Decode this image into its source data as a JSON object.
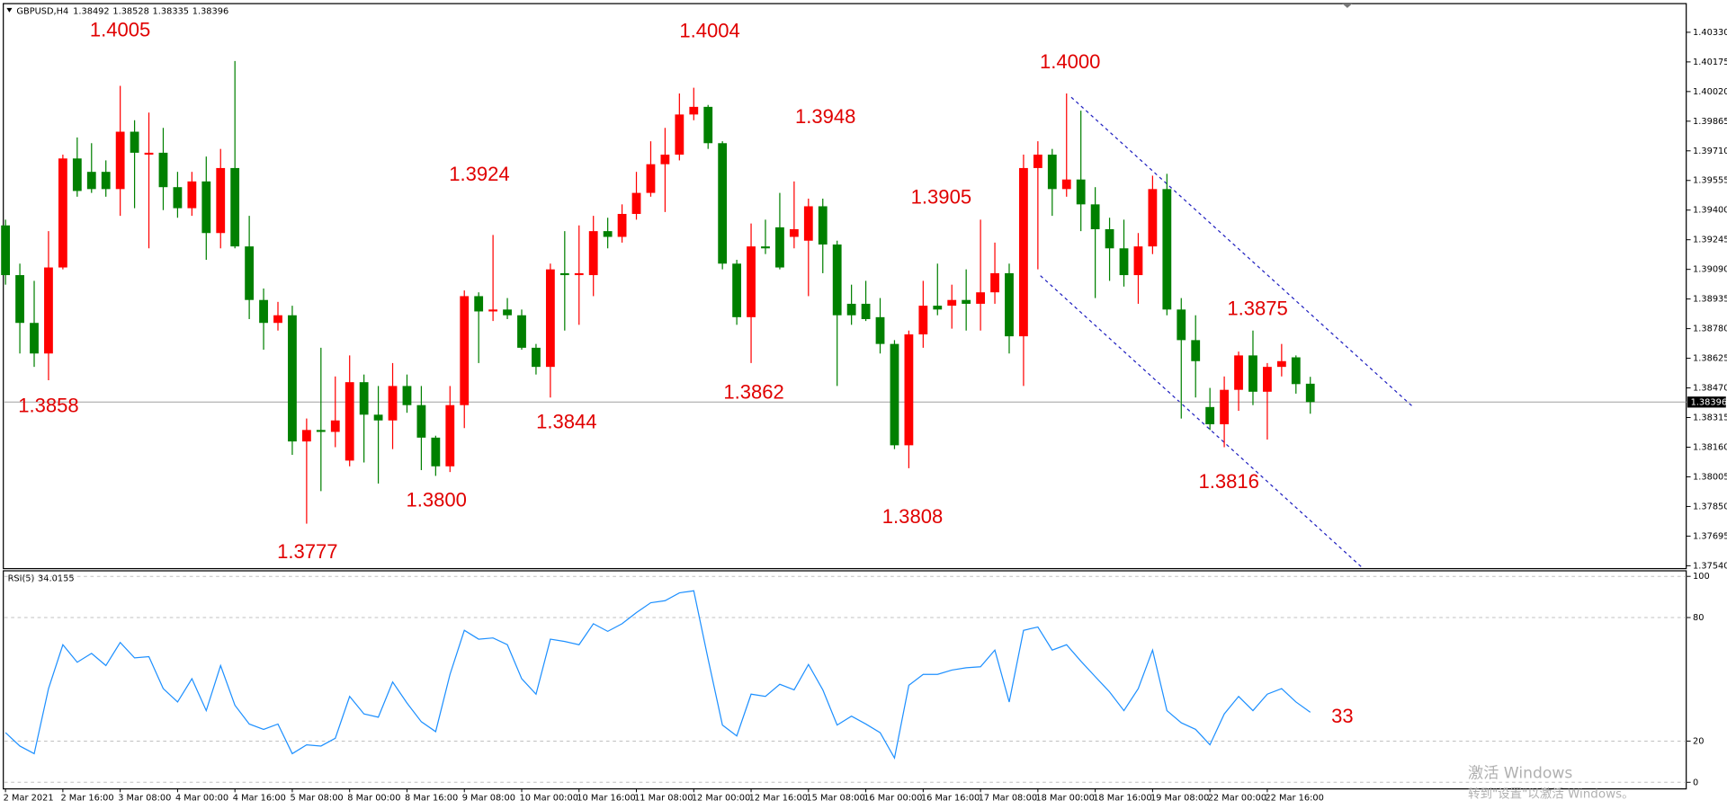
{
  "chart_data": [
    {
      "type": "candlestick",
      "symbol": "GBPUSD,H4",
      "up_color": "#ff0000",
      "down_color": "#008000",
      "categories": [
        "2 Mar 2021",
        null,
        null,
        null,
        "2 Mar 16:00",
        null,
        null,
        null,
        "3 Mar 08:00",
        null,
        null,
        null,
        "4 Mar 00:00",
        null,
        null,
        null,
        "4 Mar 16:00",
        null,
        null,
        null,
        "5 Mar 08:00",
        null,
        null,
        null,
        "8 Mar 00:00",
        null,
        null,
        null,
        "8 Mar 16:00",
        null,
        null,
        null,
        "9 Mar 08:00",
        null,
        null,
        null,
        "10 Mar 00:00",
        null,
        null,
        null,
        "10 Mar 16:00",
        null,
        null,
        null,
        "11 Mar 08:00",
        null,
        null,
        null,
        "12 Mar 00:00",
        null,
        null,
        null,
        "12 Mar 16:00",
        null,
        null,
        null,
        "15 Mar 08:00",
        null,
        null,
        null,
        "16 Mar 00:00",
        null,
        null,
        null,
        "16 Mar 16:00",
        null,
        null,
        null,
        "17 Mar 08:00",
        null,
        null,
        null,
        "18 Mar 00:00",
        null,
        null,
        null,
        "18 Mar 16:00",
        null,
        null,
        null,
        "19 Mar 08:00",
        null,
        null,
        null,
        "22 Mar 00:00",
        null,
        null,
        null,
        "22 Mar 16:00",
        null,
        null,
        null
      ],
      "open": [
        1.3932,
        1.3906,
        1.3881,
        1.3865,
        1.391,
        1.3967,
        1.396,
        1.396,
        1.3951,
        1.3981,
        1.3969,
        1.397,
        1.3952,
        1.3941,
        1.3955,
        1.3928,
        1.3962,
        1.3921,
        1.3893,
        1.3881,
        1.3885,
        1.3819,
        1.3825,
        1.3824,
        1.3809,
        1.385,
        1.3833,
        1.383,
        1.3848,
        1.3838,
        1.3821,
        1.3806,
        1.3838,
        1.3895,
        1.3887,
        1.3888,
        1.3885,
        1.3868,
        1.3858,
        1.3907,
        1.3906,
        1.3906,
        1.3929,
        1.3926,
        1.3938,
        1.3949,
        1.3964,
        1.3969,
        1.399,
        1.3994,
        1.3975,
        1.3912,
        1.3884,
        1.3921,
        1.3931,
        1.3926,
        1.3924,
        1.3942,
        1.3922,
        1.3891,
        1.3891,
        1.3884,
        1.387,
        1.3817,
        1.3875,
        1.389,
        1.389,
        1.3893,
        1.3891,
        1.3897,
        1.3907,
        1.3874,
        1.3962,
        1.3969,
        1.3951,
        1.3956,
        1.3943,
        1.393,
        1.392,
        1.3906,
        1.3921,
        1.3951,
        1.3888,
        1.3872,
        1.3837,
        1.3828,
        1.3846,
        1.3864,
        1.3845,
        1.3858,
        1.3863,
        1.38492
      ],
      "high": [
        1.3935,
        1.3912,
        1.3903,
        1.3929,
        1.3969,
        1.3978,
        1.3975,
        1.3966,
        1.4005,
        1.3987,
        1.3991,
        1.3983,
        1.396,
        1.396,
        1.3968,
        1.3972,
        1.4018,
        1.3937,
        1.3899,
        1.3892,
        1.389,
        1.3831,
        1.3868,
        1.3853,
        1.3864,
        1.3854,
        1.3848,
        1.386,
        1.3854,
        1.3848,
        1.3822,
        1.3848,
        1.3898,
        1.3897,
        1.3927,
        1.3894,
        1.3888,
        1.387,
        1.3912,
        1.3929,
        1.3932,
        1.3937,
        1.3936,
        1.3943,
        1.396,
        1.3976,
        1.3983,
        1.4001,
        1.4004,
        1.3995,
        1.3976,
        1.3914,
        1.3933,
        1.3935,
        1.3949,
        1.3955,
        1.3946,
        1.3946,
        1.3924,
        1.3901,
        1.3903,
        1.3894,
        1.3872,
        1.3877,
        1.3903,
        1.3912,
        1.3901,
        1.3909,
        1.3935,
        1.3923,
        1.3912,
        1.3969,
        1.3976,
        1.3972,
        1.4001,
        1.3992,
        1.3952,
        1.3936,
        1.3935,
        1.3928,
        1.3958,
        1.3959,
        1.3894,
        1.3885,
        1.3847,
        1.3853,
        1.3866,
        1.3877,
        1.386,
        1.387,
        1.3864,
        1.38528
      ],
      "low": [
        1.3901,
        1.3865,
        1.3858,
        1.3851,
        1.3909,
        1.3947,
        1.3949,
        1.3947,
        1.3937,
        1.3941,
        1.392,
        1.394,
        1.3936,
        1.3937,
        1.3914,
        1.392,
        1.392,
        1.3883,
        1.3867,
        1.3877,
        1.3812,
        1.3776,
        1.3793,
        1.3816,
        1.3806,
        1.3808,
        1.3797,
        1.3815,
        1.3834,
        1.3804,
        1.3801,
        1.3803,
        1.3826,
        1.386,
        1.3882,
        1.3883,
        1.3867,
        1.3854,
        1.3842,
        1.3877,
        1.388,
        1.3895,
        1.392,
        1.3923,
        1.3935,
        1.3947,
        1.3939,
        1.3966,
        1.3987,
        1.3972,
        1.3909,
        1.388,
        1.386,
        1.3917,
        1.3909,
        1.392,
        1.3895,
        1.3907,
        1.3848,
        1.388,
        1.3882,
        1.3865,
        1.3815,
        1.3805,
        1.3868,
        1.3885,
        1.3878,
        1.3877,
        1.3877,
        1.3891,
        1.3865,
        1.3848,
        1.3909,
        1.3937,
        1.3947,
        1.3929,
        1.3894,
        1.3903,
        1.39,
        1.3891,
        1.3917,
        1.3885,
        1.3831,
        1.3842,
        1.3825,
        1.3816,
        1.3835,
        1.3838,
        1.382,
        1.3853,
        1.3844,
        1.38335
      ],
      "close": [
        1.3906,
        1.3881,
        1.3865,
        1.391,
        1.3967,
        1.395,
        1.3951,
        1.3951,
        1.3981,
        1.397,
        1.397,
        1.3952,
        1.3941,
        1.3955,
        1.3928,
        1.3962,
        1.3921,
        1.3893,
        1.3881,
        1.3885,
        1.3819,
        1.3825,
        1.3824,
        1.383,
        1.385,
        1.3833,
        1.383,
        1.3848,
        1.3838,
        1.3821,
        1.3806,
        1.3838,
        1.3895,
        1.3887,
        1.3888,
        1.3885,
        1.3868,
        1.3858,
        1.3909,
        1.3906,
        1.3907,
        1.3929,
        1.3926,
        1.3938,
        1.3949,
        1.3964,
        1.3969,
        1.399,
        1.3994,
        1.3975,
        1.3912,
        1.3884,
        1.3921,
        1.392,
        1.391,
        1.393,
        1.3942,
        1.3922,
        1.3885,
        1.3885,
        1.3883,
        1.387,
        1.3817,
        1.3875,
        1.389,
        1.3888,
        1.3893,
        1.3891,
        1.3897,
        1.3907,
        1.3874,
        1.3962,
        1.3969,
        1.3951,
        1.3956,
        1.3943,
        1.393,
        1.392,
        1.3906,
        1.3921,
        1.3951,
        1.3888,
        1.3872,
        1.3861,
        1.3828,
        1.3846,
        1.3864,
        1.3845,
        1.3858,
        1.3861,
        1.3849,
        1.38396
      ],
      "ylim": [
        1.37525,
        1.4048
      ],
      "yticks": [
        {
          "value": 1.4033,
          "label": "1.40330"
        },
        1.40175,
        {
          "value": 1.4002,
          "label": "1.40020"
        },
        1.39865,
        {
          "value": 1.3971,
          "label": "1.39710"
        },
        1.39555,
        {
          "value": 1.394,
          "label": "1.39400"
        },
        1.39245,
        {
          "value": 1.3909,
          "label": "1.39090"
        },
        1.38935,
        {
          "value": 1.3878,
          "label": "1.38780"
        },
        1.38625,
        {
          "value": 1.3847,
          "label": "1.38470"
        },
        1.38315,
        {
          "value": 1.3816,
          "label": "1.38160"
        },
        1.38005,
        {
          "value": 1.3785,
          "label": "1.37850"
        },
        1.37695,
        {
          "value": 1.3754,
          "label": "1.37540"
        }
      ],
      "annotations": [
        "1.4005",
        "1.4004",
        "1.4000",
        "1.3948",
        "1.3924",
        "1.3905",
        "1.3875",
        "1.3858",
        "1.3844",
        "1.3862",
        "1.3800",
        "1.3777",
        "1.3808",
        "1.3816"
      ]
    },
    {
      "type": "line",
      "name": "RSI(5)",
      "color": "#1e90ff",
      "values": [
        24.1,
        17.6,
        13.9,
        45.5,
        66.8,
        58.3,
        62.6,
        56.7,
        67.9,
        60.4,
        61.0,
        45.5,
        39.0,
        50.3,
        34.8,
        56.7,
        37.4,
        28.3,
        25.7,
        28.3,
        13.9,
        18.2,
        17.6,
        21.4,
        41.7,
        33.2,
        31.6,
        48.7,
        38.5,
        29.4,
        24.6,
        52.4,
        73.8,
        69.5,
        70.1,
        66.8,
        50.3,
        42.8,
        69.5,
        68.4,
        66.8,
        77.0,
        73.3,
        77.0,
        82.4,
        87.2,
        88.2,
        92.0,
        93.0,
        59.9,
        27.8,
        22.5,
        42.8,
        41.7,
        47.6,
        44.9,
        57.2,
        44.9,
        27.8,
        32.1,
        28.3,
        24.1,
        11.8,
        47.1,
        52.4,
        52.4,
        54.5,
        55.6,
        56.1,
        64.2,
        39.0,
        73.8,
        75.4,
        64.2,
        66.8,
        58.8,
        51.3,
        43.9,
        34.8,
        45.5,
        64.2,
        34.8,
        28.9,
        25.7,
        18.2,
        33.2,
        41.7,
        34.8,
        42.8,
        45.5,
        39.0,
        34.0155
      ],
      "ylim": [
        -3.2,
        102.7
      ],
      "yticks": [
        0,
        20,
        80,
        100
      ],
      "grid": true,
      "annotations": [
        "33"
      ]
    }
  ],
  "watermark": {
    "line1": "激活 Windows",
    "line2": "转到\"设置\"以激活 Windows。"
  }
}
